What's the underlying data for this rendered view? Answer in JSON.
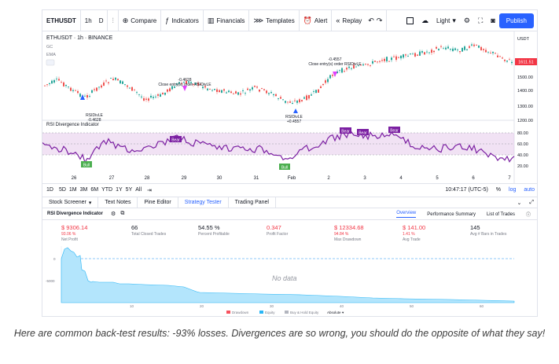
{
  "toolbar": {
    "symbol": "ETHUSDT",
    "interval": "1h",
    "chart_type": "D",
    "compare": "Compare",
    "indicators": "Indicators",
    "financials": "Financials",
    "templates": "Templates",
    "alert": "Alert",
    "replay": "Replay",
    "theme": "Light",
    "publish": "Publish"
  },
  "chart": {
    "title": "ETHUSDT · 1h · BINANCE",
    "legend_gc": "GC",
    "legend_ema": "EMA",
    "currency": "USDT",
    "last_price": "1611.51",
    "price_labels": [
      "1500.00",
      "1400.00",
      "1300.00",
      "1200.00"
    ],
    "annotations": [
      {
        "text1": "RSIDivLE",
        "text2": "-0.4628"
      },
      {
        "text1": "-0.4628",
        "text2": "Close entry(s) order RSIDivLE"
      },
      {
        "text1": "RSIDivLE",
        "text2": "+0.4557"
      },
      {
        "text1": "-0.4557",
        "text2": "Close entry(s) order RSIDivLE"
      }
    ]
  },
  "rsi": {
    "title": "RSI Divergence Indicator",
    "levels": [
      "80.00",
      "60.00",
      "40.00",
      "20.00"
    ],
    "bull_label": "Bull",
    "bear_label": "Bear"
  },
  "time_axis": {
    "labels": [
      "26",
      "27",
      "28",
      "29",
      "30",
      "31",
      "Feb",
      "2",
      "3",
      "4",
      "5",
      "6",
      "7"
    ]
  },
  "timebar": {
    "ranges": [
      "1D",
      "5D",
      "1M",
      "3M",
      "6M",
      "YTD",
      "1Y",
      "5Y",
      "All"
    ],
    "clock": "10:47:17 (UTC-5)",
    "percent": "%",
    "log": "log",
    "auto": "auto"
  },
  "panel_tabs": [
    "Stock Screener",
    "Text Notes",
    "Pine Editor",
    "Strategy Tester",
    "Trading Panel"
  ],
  "strategy": {
    "name": "RSI Divergence Indicator",
    "tabs": [
      "Overview",
      "Performance Summary",
      "List of Trades"
    ],
    "metrics": [
      {
        "value": "$ 9306.14",
        "sub": "93.06 %",
        "label": "Net Profit",
        "red": true
      },
      {
        "value": "66",
        "sub": "",
        "label": "Total Closed Trades",
        "red": false
      },
      {
        "value": "54.55 %",
        "sub": "",
        "label": "Percent Profitable",
        "red": false
      },
      {
        "value": "0.347",
        "sub": "",
        "label": "Profit Factor",
        "red": true
      },
      {
        "value": "$ 12334.68",
        "sub": "94.84 %",
        "label": "Max Drawdown",
        "red": true
      },
      {
        "value": "$ 141.00",
        "sub": "1.41 %",
        "label": "Avg Trade",
        "red": true
      },
      {
        "value": "145",
        "sub": "",
        "label": "Avg # Bars in Trades",
        "red": false
      }
    ],
    "no_data": "No data",
    "y_labels": [
      "0",
      "-5000"
    ],
    "x_labels": [
      "10",
      "20",
      "30",
      "40",
      "50",
      "60"
    ],
    "legend": [
      "Drawdown",
      "Equity",
      "Buy & Hold Equity",
      "Absolute"
    ],
    "colors": {
      "drawdown": "#f7525f",
      "equity": "#29b6f6",
      "bh": "#b2b5be"
    }
  },
  "caption": "Here are common back-test results: -93% losses. Divergences are so wrong, you should do the opposite of what they say!"
}
